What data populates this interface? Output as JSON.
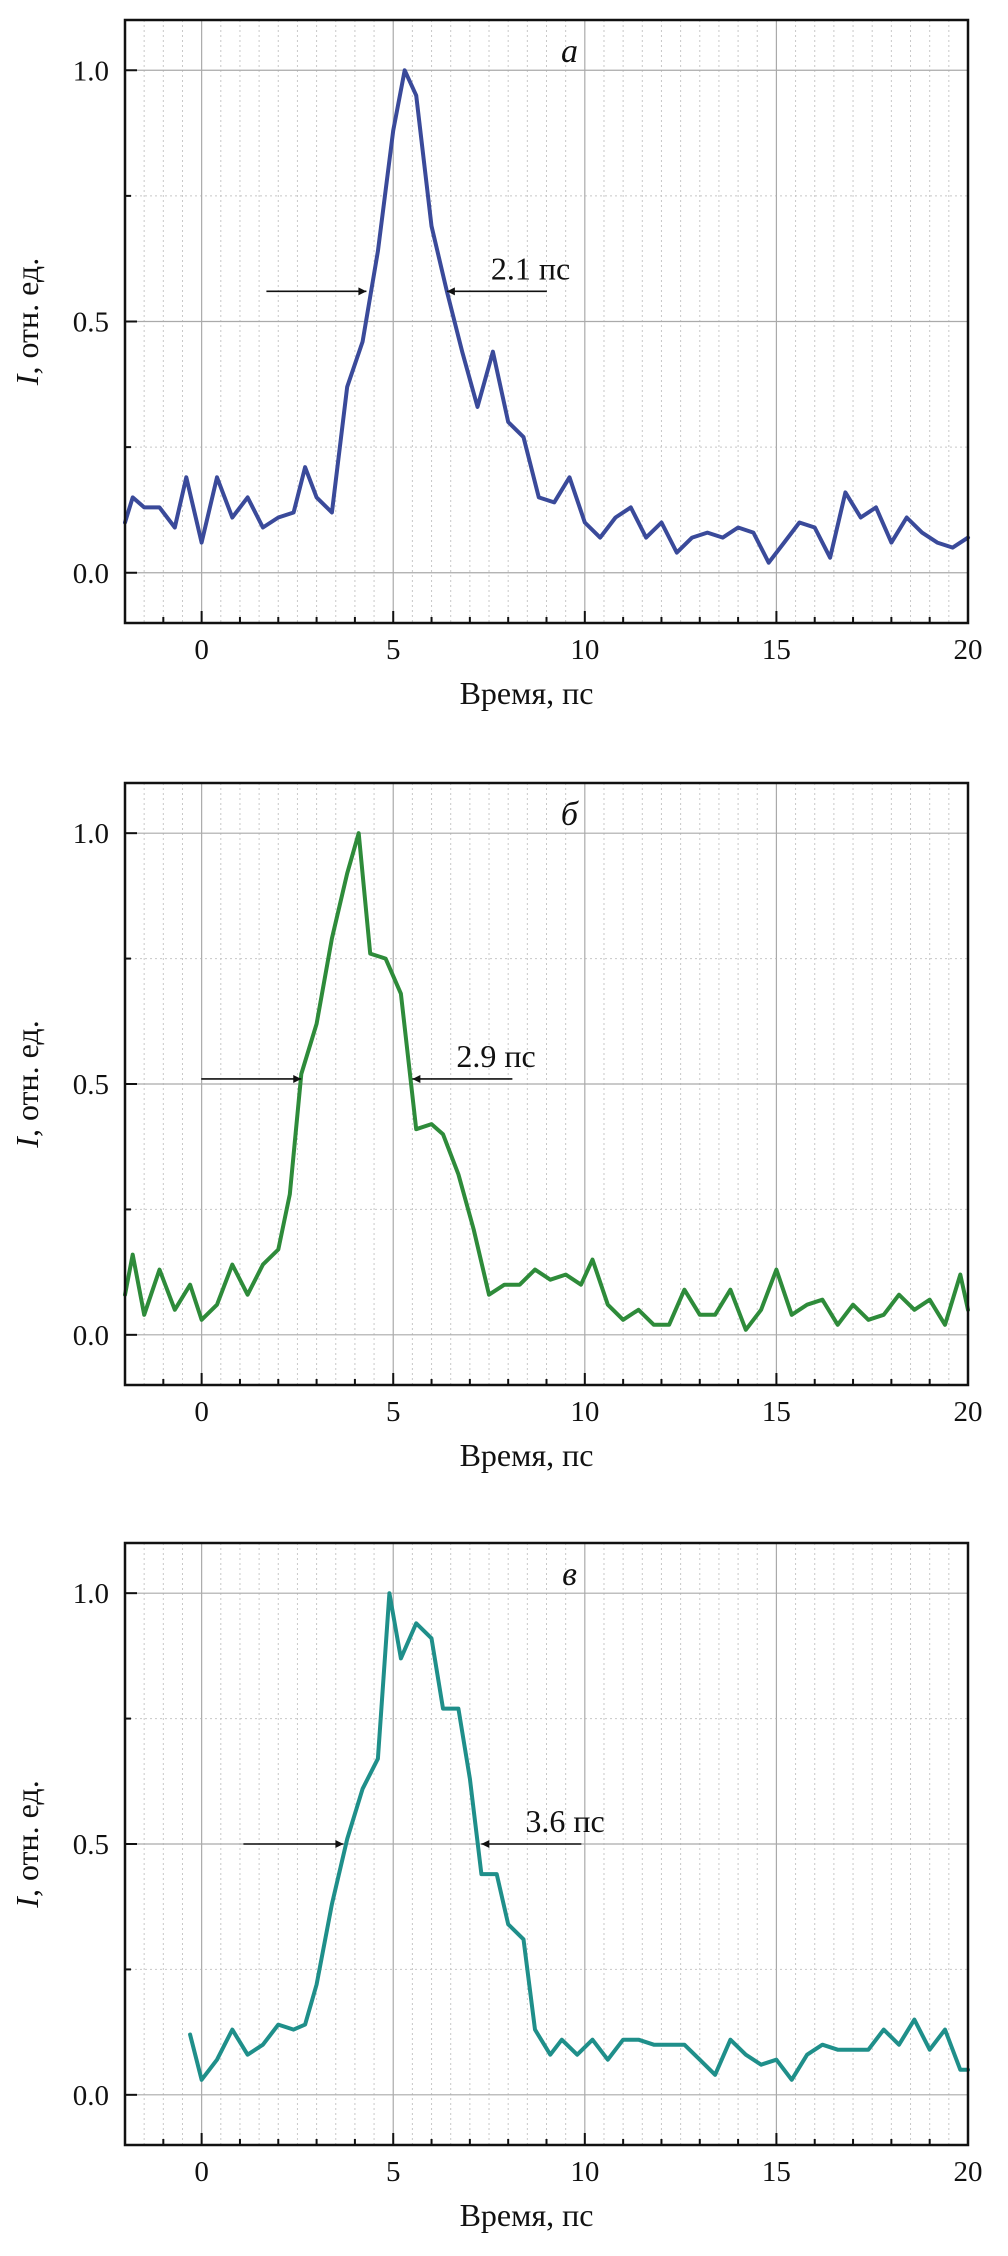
{
  "chart_data": [
    {
      "type": "line",
      "panel_label": "a",
      "xlabel": "Время, пс",
      "ylabel_symbol": "I",
      "ylabel_rest": ", отн. ед.",
      "xlim": [
        -2,
        20
      ],
      "ylim": [
        -0.1,
        1.1
      ],
      "xticks": [
        0,
        5,
        10,
        15,
        20
      ],
      "yticks": [
        0.0,
        0.5,
        1.0
      ],
      "xtick_labels": [
        "0",
        "5",
        "10",
        "15",
        "20"
      ],
      "ytick_labels": [
        "0.0",
        "0.5",
        "1.0"
      ],
      "grid": true,
      "color": "#3a4a9a",
      "fwhm_label": "2.1 пс",
      "fwhm_x": [
        4.3,
        6.4
      ],
      "fwhm_y": 0.56,
      "series": [
        {
          "x": [
            -2.0,
            -1.8,
            -1.5,
            -1.1,
            -0.7,
            -0.4,
            0.0,
            0.4,
            0.8,
            1.2,
            1.6,
            2.0,
            2.4,
            2.7,
            3.0,
            3.4,
            3.8,
            4.2,
            4.6,
            5.0,
            5.3,
            5.6,
            6.0,
            6.4,
            6.8,
            7.2,
            7.6,
            8.0,
            8.4,
            8.8,
            9.2,
            9.6,
            10.0,
            10.4,
            10.8,
            11.2,
            11.6,
            12.0,
            12.4,
            12.8,
            13.2,
            13.6,
            14.0,
            14.4,
            14.8,
            15.2,
            15.6,
            16.0,
            16.4,
            16.8,
            17.2,
            17.6,
            18.0,
            18.4,
            18.8,
            19.2,
            19.6,
            20.0
          ],
          "y": [
            0.1,
            0.15,
            0.13,
            0.13,
            0.09,
            0.19,
            0.06,
            0.19,
            0.11,
            0.15,
            0.09,
            0.11,
            0.12,
            0.21,
            0.15,
            0.12,
            0.37,
            0.46,
            0.64,
            0.88,
            1.0,
            0.95,
            0.69,
            0.56,
            0.44,
            0.33,
            0.44,
            0.3,
            0.27,
            0.15,
            0.14,
            0.19,
            0.1,
            0.07,
            0.11,
            0.13,
            0.07,
            0.1,
            0.04,
            0.07,
            0.08,
            0.07,
            0.09,
            0.08,
            0.02,
            0.06,
            0.1,
            0.09,
            0.03,
            0.16,
            0.11,
            0.13,
            0.06,
            0.11,
            0.08,
            0.06,
            0.05,
            0.07
          ]
        }
      ]
    },
    {
      "type": "line",
      "panel_label": "б",
      "xlabel": "Время, пс",
      "ylabel_symbol": "I",
      "ylabel_rest": ", отн. ед.",
      "xlim": [
        -2,
        20
      ],
      "ylim": [
        -0.1,
        1.1
      ],
      "xticks": [
        0,
        5,
        10,
        15,
        20
      ],
      "yticks": [
        0.0,
        0.5,
        1.0
      ],
      "xtick_labels": [
        "0",
        "5",
        "10",
        "15",
        "20"
      ],
      "ytick_labels": [
        "0.0",
        "0.5",
        "1.0"
      ],
      "grid": true,
      "color": "#2e8b3a",
      "fwhm_label": "2.9 пс",
      "fwhm_x": [
        2.6,
        5.5
      ],
      "fwhm_y": 0.51,
      "series": [
        {
          "x": [
            -2.0,
            -1.8,
            -1.5,
            -1.1,
            -0.7,
            -0.3,
            0.0,
            0.4,
            0.8,
            1.2,
            1.6,
            2.0,
            2.3,
            2.6,
            3.0,
            3.4,
            3.8,
            4.1,
            4.4,
            4.8,
            5.2,
            5.6,
            6.0,
            6.3,
            6.7,
            7.1,
            7.5,
            7.9,
            8.3,
            8.7,
            9.1,
            9.5,
            9.9,
            10.2,
            10.6,
            11.0,
            11.4,
            11.8,
            12.2,
            12.6,
            13.0,
            13.4,
            13.8,
            14.2,
            14.6,
            15.0,
            15.4,
            15.8,
            16.2,
            16.6,
            17.0,
            17.4,
            17.8,
            18.2,
            18.6,
            19.0,
            19.4,
            19.8,
            20.0
          ],
          "y": [
            0.08,
            0.16,
            0.04,
            0.13,
            0.05,
            0.1,
            0.03,
            0.06,
            0.14,
            0.08,
            0.14,
            0.17,
            0.28,
            0.52,
            0.62,
            0.79,
            0.92,
            1.0,
            0.76,
            0.75,
            0.68,
            0.41,
            0.42,
            0.4,
            0.32,
            0.21,
            0.08,
            0.1,
            0.1,
            0.13,
            0.11,
            0.12,
            0.1,
            0.15,
            0.06,
            0.03,
            0.05,
            0.02,
            0.02,
            0.09,
            0.04,
            0.04,
            0.09,
            0.01,
            0.05,
            0.13,
            0.04,
            0.06,
            0.07,
            0.02,
            0.06,
            0.03,
            0.04,
            0.08,
            0.05,
            0.07,
            0.02,
            0.12,
            0.05
          ]
        }
      ]
    },
    {
      "type": "line",
      "panel_label": "в",
      "xlabel": "Время, пс",
      "ylabel_symbol": "I",
      "ylabel_rest": ", отн. ед.",
      "xlim": [
        -2,
        20
      ],
      "ylim": [
        -0.1,
        1.1
      ],
      "xticks": [
        0,
        5,
        10,
        15,
        20
      ],
      "yticks": [
        0.0,
        0.5,
        1.0
      ],
      "xtick_labels": [
        "0",
        "5",
        "10",
        "15",
        "20"
      ],
      "ytick_labels": [
        "0.0",
        "0.5",
        "1.0"
      ],
      "grid": true,
      "color": "#1f8f8a",
      "fwhm_label": "3.6 пс",
      "fwhm_x": [
        3.7,
        7.3
      ],
      "fwhm_y": 0.5,
      "series": [
        {
          "x": [
            -0.3,
            0.0,
            0.4,
            0.8,
            1.2,
            1.6,
            2.0,
            2.4,
            2.7,
            3.0,
            3.4,
            3.8,
            4.2,
            4.6,
            4.9,
            5.2,
            5.6,
            6.0,
            6.3,
            6.7,
            7.0,
            7.3,
            7.7,
            8.0,
            8.4,
            8.7,
            9.1,
            9.4,
            9.8,
            10.2,
            10.6,
            11.0,
            11.4,
            11.8,
            12.2,
            12.6,
            13.0,
            13.4,
            13.8,
            14.2,
            14.6,
            15.0,
            15.4,
            15.8,
            16.2,
            16.6,
            17.0,
            17.4,
            17.8,
            18.2,
            18.6,
            19.0,
            19.4,
            19.8,
            20.0
          ],
          "y": [
            0.12,
            0.03,
            0.07,
            0.13,
            0.08,
            0.1,
            0.14,
            0.13,
            0.14,
            0.22,
            0.38,
            0.51,
            0.61,
            0.67,
            1.0,
            0.87,
            0.94,
            0.91,
            0.77,
            0.77,
            0.63,
            0.44,
            0.44,
            0.34,
            0.31,
            0.13,
            0.08,
            0.11,
            0.08,
            0.11,
            0.07,
            0.11,
            0.11,
            0.1,
            0.1,
            0.1,
            0.07,
            0.04,
            0.11,
            0.08,
            0.06,
            0.07,
            0.03,
            0.08,
            0.1,
            0.09,
            0.09,
            0.09,
            0.13,
            0.1,
            0.15,
            0.09,
            0.13,
            0.05,
            0.05
          ]
        }
      ]
    }
  ]
}
